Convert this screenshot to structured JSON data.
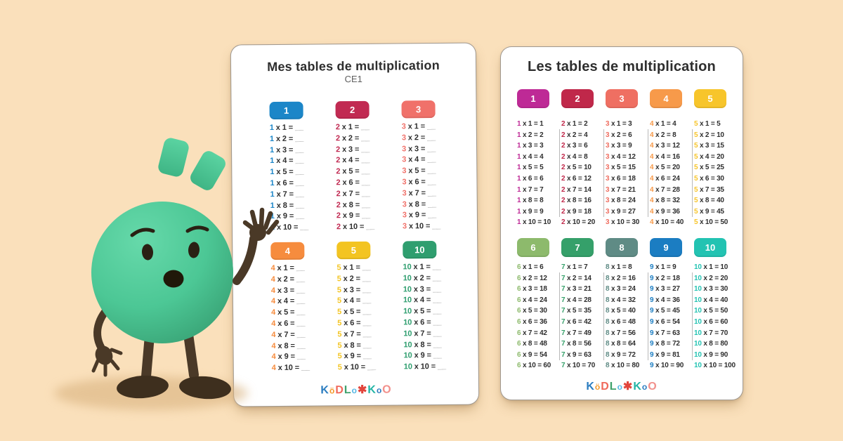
{
  "page": {
    "background_color": "#FAE0BB"
  },
  "mascot": {
    "name": "green-ball-mascot",
    "expression": "surprised",
    "body_color": "#4CC795",
    "limb_color": "#4A3927",
    "face_color": "#2A2013",
    "shadow_color": "#D9B27F"
  },
  "symbols": {
    "times": "x",
    "equals": "="
  },
  "logo": {
    "letters": [
      {
        "ch": "K",
        "color": "#2B7DC0",
        "small": false
      },
      {
        "ch": "ö",
        "color": "#F59A2B",
        "small": true
      },
      {
        "ch": "D",
        "color": "#F0685A",
        "small": false
      },
      {
        "ch": "L",
        "color": "#3FA16C",
        "small": false
      },
      {
        "ch": "o",
        "color": "#57B8E6",
        "small": true
      },
      {
        "ch": "✱",
        "color": "#E2453C",
        "small": false
      },
      {
        "ch": "K",
        "color": "#23B5A5",
        "small": false
      },
      {
        "ch": "o",
        "color": "#2B7DC0",
        "small": true
      },
      {
        "ch": "O",
        "color": "#F2918C",
        "small": false
      }
    ]
  },
  "cards": [
    {
      "title": "Mes tables de multiplication",
      "subtitle": "CE1",
      "dividers": false,
      "blank": "__",
      "groups": [
        {
          "tables": [
            {
              "n": "1",
              "color": "#1C86C8",
              "rows": [
                [
                  "1",
                  "__"
                ],
                [
                  "2",
                  "__"
                ],
                [
                  "3",
                  "__"
                ],
                [
                  "4",
                  "__"
                ],
                [
                  "5",
                  "__"
                ],
                [
                  "6",
                  "__"
                ],
                [
                  "7",
                  "__"
                ],
                [
                  "8",
                  "__"
                ],
                [
                  "9",
                  "__"
                ],
                [
                  "10",
                  "__"
                ]
              ]
            },
            {
              "n": "2",
              "color": "#C12A52",
              "rows": [
                [
                  "1",
                  "__"
                ],
                [
                  "2",
                  "__"
                ],
                [
                  "3",
                  "__"
                ],
                [
                  "4",
                  "__"
                ],
                [
                  "5",
                  "__"
                ],
                [
                  "6",
                  "__"
                ],
                [
                  "7",
                  "__"
                ],
                [
                  "8",
                  "__"
                ],
                [
                  "9",
                  "__"
                ],
                [
                  "10",
                  "__"
                ]
              ]
            },
            {
              "n": "3",
              "color": "#F0716A",
              "rows": [
                [
                  "1",
                  "__"
                ],
                [
                  "2",
                  "__"
                ],
                [
                  "3",
                  "__"
                ],
                [
                  "4",
                  "__"
                ],
                [
                  "5",
                  "__"
                ],
                [
                  "6",
                  "__"
                ],
                [
                  "7",
                  "__"
                ],
                [
                  "8",
                  "__"
                ],
                [
                  "9",
                  "__"
                ],
                [
                  "10",
                  "__"
                ]
              ]
            }
          ]
        },
        {
          "tables": [
            {
              "n": "4",
              "color": "#F68C3E",
              "rows": [
                [
                  "1",
                  "__"
                ],
                [
                  "2",
                  "__"
                ],
                [
                  "3",
                  "__"
                ],
                [
                  "4",
                  "__"
                ],
                [
                  "5",
                  "__"
                ],
                [
                  "6",
                  "__"
                ],
                [
                  "7",
                  "__"
                ],
                [
                  "8",
                  "__"
                ],
                [
                  "9",
                  "__"
                ],
                [
                  "10",
                  "__"
                ]
              ]
            },
            {
              "n": "5",
              "color": "#F3C421",
              "rows": [
                [
                  "1",
                  "__"
                ],
                [
                  "2",
                  "__"
                ],
                [
                  "3",
                  "__"
                ],
                [
                  "4",
                  "__"
                ],
                [
                  "5",
                  "__"
                ],
                [
                  "6",
                  "__"
                ],
                [
                  "7",
                  "__"
                ],
                [
                  "8",
                  "__"
                ],
                [
                  "9",
                  "__"
                ],
                [
                  "10",
                  "__"
                ]
              ]
            },
            {
              "n": "10",
              "color": "#2F9E6F",
              "rows": [
                [
                  "1",
                  "__"
                ],
                [
                  "2",
                  "__"
                ],
                [
                  "3",
                  "__"
                ],
                [
                  "4",
                  "__"
                ],
                [
                  "5",
                  "__"
                ],
                [
                  "6",
                  "__"
                ],
                [
                  "7",
                  "__"
                ],
                [
                  "8",
                  "__"
                ],
                [
                  "9",
                  "__"
                ],
                [
                  "10",
                  "__"
                ]
              ]
            }
          ]
        }
      ]
    },
    {
      "title": "Les tables de multiplication",
      "subtitle": "",
      "dividers": true,
      "blank": "",
      "groups": [
        {
          "tables": [
            {
              "n": "1",
              "color": "#BE2A96",
              "rows": [
                [
                  "1",
                  "1"
                ],
                [
                  "2",
                  "2"
                ],
                [
                  "3",
                  "3"
                ],
                [
                  "4",
                  "4"
                ],
                [
                  "5",
                  "5"
                ],
                [
                  "6",
                  "6"
                ],
                [
                  "7",
                  "7"
                ],
                [
                  "8",
                  "8"
                ],
                [
                  "9",
                  "9"
                ],
                [
                  "10",
                  "10"
                ]
              ]
            },
            {
              "n": "2",
              "color": "#C0284A",
              "rows": [
                [
                  "1",
                  "2"
                ],
                [
                  "2",
                  "4"
                ],
                [
                  "3",
                  "6"
                ],
                [
                  "4",
                  "8"
                ],
                [
                  "5",
                  "10"
                ],
                [
                  "6",
                  "12"
                ],
                [
                  "7",
                  "14"
                ],
                [
                  "8",
                  "16"
                ],
                [
                  "9",
                  "18"
                ],
                [
                  "10",
                  "20"
                ]
              ]
            },
            {
              "n": "3",
              "color": "#EF6F62",
              "rows": [
                [
                  "1",
                  "3"
                ],
                [
                  "2",
                  "6"
                ],
                [
                  "3",
                  "9"
                ],
                [
                  "4",
                  "12"
                ],
                [
                  "5",
                  "15"
                ],
                [
                  "6",
                  "18"
                ],
                [
                  "7",
                  "21"
                ],
                [
                  "8",
                  "24"
                ],
                [
                  "9",
                  "27"
                ],
                [
                  "10",
                  "30"
                ]
              ]
            },
            {
              "n": "4",
              "color": "#F79A4A",
              "rows": [
                [
                  "1",
                  "4"
                ],
                [
                  "2",
                  "8"
                ],
                [
                  "3",
                  "12"
                ],
                [
                  "4",
                  "16"
                ],
                [
                  "5",
                  "20"
                ],
                [
                  "6",
                  "24"
                ],
                [
                  "7",
                  "28"
                ],
                [
                  "8",
                  "32"
                ],
                [
                  "9",
                  "36"
                ],
                [
                  "10",
                  "40"
                ]
              ]
            },
            {
              "n": "5",
              "color": "#F7C52B",
              "rows": [
                [
                  "1",
                  "5"
                ],
                [
                  "2",
                  "10"
                ],
                [
                  "3",
                  "15"
                ],
                [
                  "4",
                  "20"
                ],
                [
                  "5",
                  "25"
                ],
                [
                  "6",
                  "30"
                ],
                [
                  "7",
                  "35"
                ],
                [
                  "8",
                  "40"
                ],
                [
                  "9",
                  "45"
                ],
                [
                  "10",
                  "50"
                ]
              ]
            }
          ]
        },
        {
          "tables": [
            {
              "n": "6",
              "color": "#8DBA6C",
              "rows": [
                [
                  "1",
                  "6"
                ],
                [
                  "2",
                  "12"
                ],
                [
                  "3",
                  "18"
                ],
                [
                  "4",
                  "24"
                ],
                [
                  "5",
                  "30"
                ],
                [
                  "6",
                  "36"
                ],
                [
                  "7",
                  "42"
                ],
                [
                  "8",
                  "48"
                ],
                [
                  "9",
                  "54"
                ],
                [
                  "10",
                  "60"
                ]
              ]
            },
            {
              "n": "7",
              "color": "#35A06A",
              "rows": [
                [
                  "1",
                  "7"
                ],
                [
                  "2",
                  "14"
                ],
                [
                  "3",
                  "21"
                ],
                [
                  "4",
                  "28"
                ],
                [
                  "5",
                  "35"
                ],
                [
                  "6",
                  "42"
                ],
                [
                  "7",
                  "49"
                ],
                [
                  "8",
                  "56"
                ],
                [
                  "9",
                  "63"
                ],
                [
                  "10",
                  "70"
                ]
              ]
            },
            {
              "n": "8",
              "color": "#5F8B85",
              "rows": [
                [
                  "1",
                  "8"
                ],
                [
                  "2",
                  "16"
                ],
                [
                  "3",
                  "24"
                ],
                [
                  "4",
                  "32"
                ],
                [
                  "5",
                  "40"
                ],
                [
                  "6",
                  "48"
                ],
                [
                  "7",
                  "56"
                ],
                [
                  "8",
                  "64"
                ],
                [
                  "9",
                  "72"
                ],
                [
                  "10",
                  "80"
                ]
              ]
            },
            {
              "n": "9",
              "color": "#1B7DC2",
              "rows": [
                [
                  "1",
                  "9"
                ],
                [
                  "2",
                  "18"
                ],
                [
                  "3",
                  "27"
                ],
                [
                  "4",
                  "36"
                ],
                [
                  "5",
                  "45"
                ],
                [
                  "6",
                  "54"
                ],
                [
                  "7",
                  "63"
                ],
                [
                  "8",
                  "72"
                ],
                [
                  "9",
                  "81"
                ],
                [
                  "10",
                  "90"
                ]
              ]
            },
            {
              "n": "10",
              "color": "#23C3B2",
              "rows": [
                [
                  "1",
                  "10"
                ],
                [
                  "2",
                  "20"
                ],
                [
                  "3",
                  "30"
                ],
                [
                  "4",
                  "40"
                ],
                [
                  "5",
                  "50"
                ],
                [
                  "6",
                  "60"
                ],
                [
                  "7",
                  "70"
                ],
                [
                  "8",
                  "80"
                ],
                [
                  "9",
                  "90"
                ],
                [
                  "10",
                  "100"
                ]
              ]
            }
          ]
        }
      ]
    }
  ]
}
